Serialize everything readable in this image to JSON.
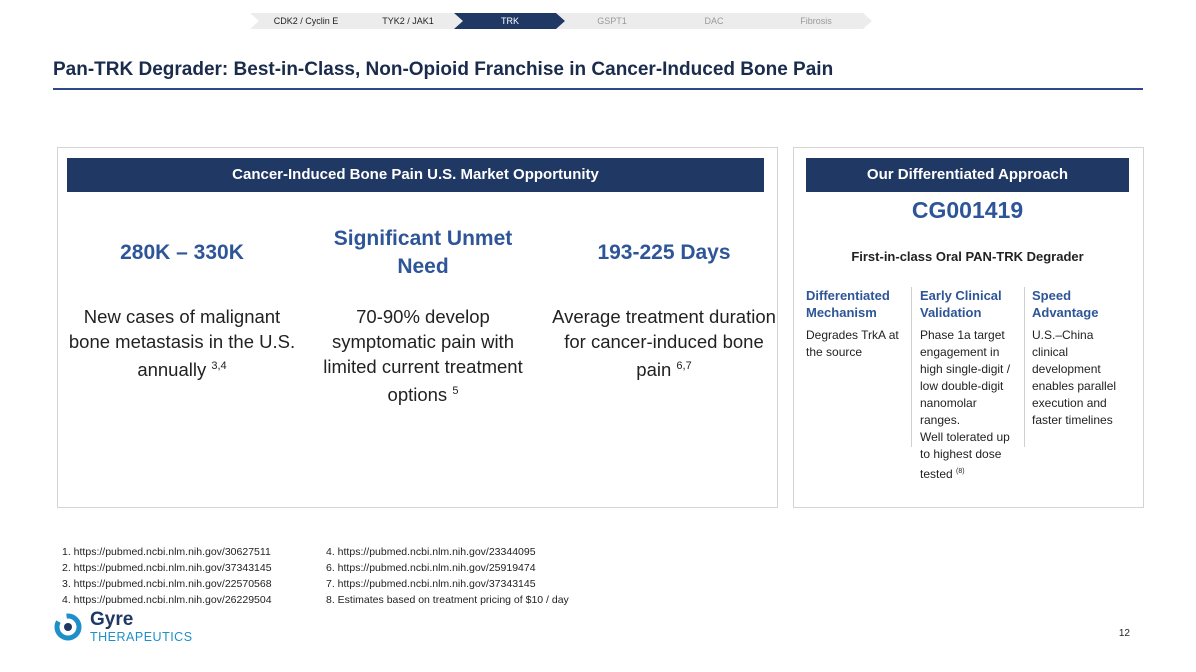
{
  "nav": [
    "CDK2 / Cyclin E",
    "TYK2 / JAK1",
    "TRK",
    "GSPT1",
    "DAC",
    "Fibrosis"
  ],
  "title": "Pan-TRK Degrader: Best-in-Class, Non-Opioid Franchise in Cancer-Induced Bone Pain",
  "market": {
    "header": "Cancer-Induced Bone Pain U.S. Market Opportunity",
    "columns": [
      {
        "heading": "280K – 330K",
        "text": "New cases of malignant bone metastasis in the U.S. annually",
        "ref": "3,4"
      },
      {
        "heading": "Significant Unmet Need",
        "text": "70-90% develop symptomatic pain with limited current treatment options",
        "ref": "5"
      },
      {
        "heading": "193-225 Days",
        "text": "Average treatment duration for cancer-induced bone pain",
        "ref": "6,7"
      }
    ]
  },
  "approach": {
    "header": "Our Differentiated Approach",
    "product": "CG001419",
    "subtitle": "First-in-class Oral PAN-TRK Degrader",
    "columns": [
      {
        "heading": "Differentiated Mechanism",
        "text": [
          "Degrades TrkA at the source"
        ]
      },
      {
        "heading": "Early Clinical Validation",
        "text": [
          "Phase 1a target engagement in high single-digit / low double-digit nanomolar ranges.",
          "Well tolerated up to highest dose tested"
        ],
        "ref": "(8)"
      },
      {
        "heading": "Speed Advantage",
        "text": [
          "U.S.–China clinical development enables parallel execution and faster timelines"
        ]
      }
    ]
  },
  "references": [
    "1. https://pubmed.ncbi.nlm.nih.gov/30627511",
    "2. https://pubmed.ncbi.nlm.nih.gov/37343145",
    "3. https://pubmed.ncbi.nlm.nih.gov/22570568",
    "4. https://pubmed.ncbi.nlm.nih.gov/26229504",
    "4. https://pubmed.ncbi.nlm.nih.gov/23344095",
    "6. https://pubmed.ncbi.nlm.nih.gov/25919474",
    "7. https://pubmed.ncbi.nlm.nih.gov/37343145",
    "8.  Estimates based on treatment pricing of $10 / day"
  ],
  "logo": {
    "name": "Gyre",
    "sub": "THERAPEUTICS"
  },
  "page_number": "12"
}
